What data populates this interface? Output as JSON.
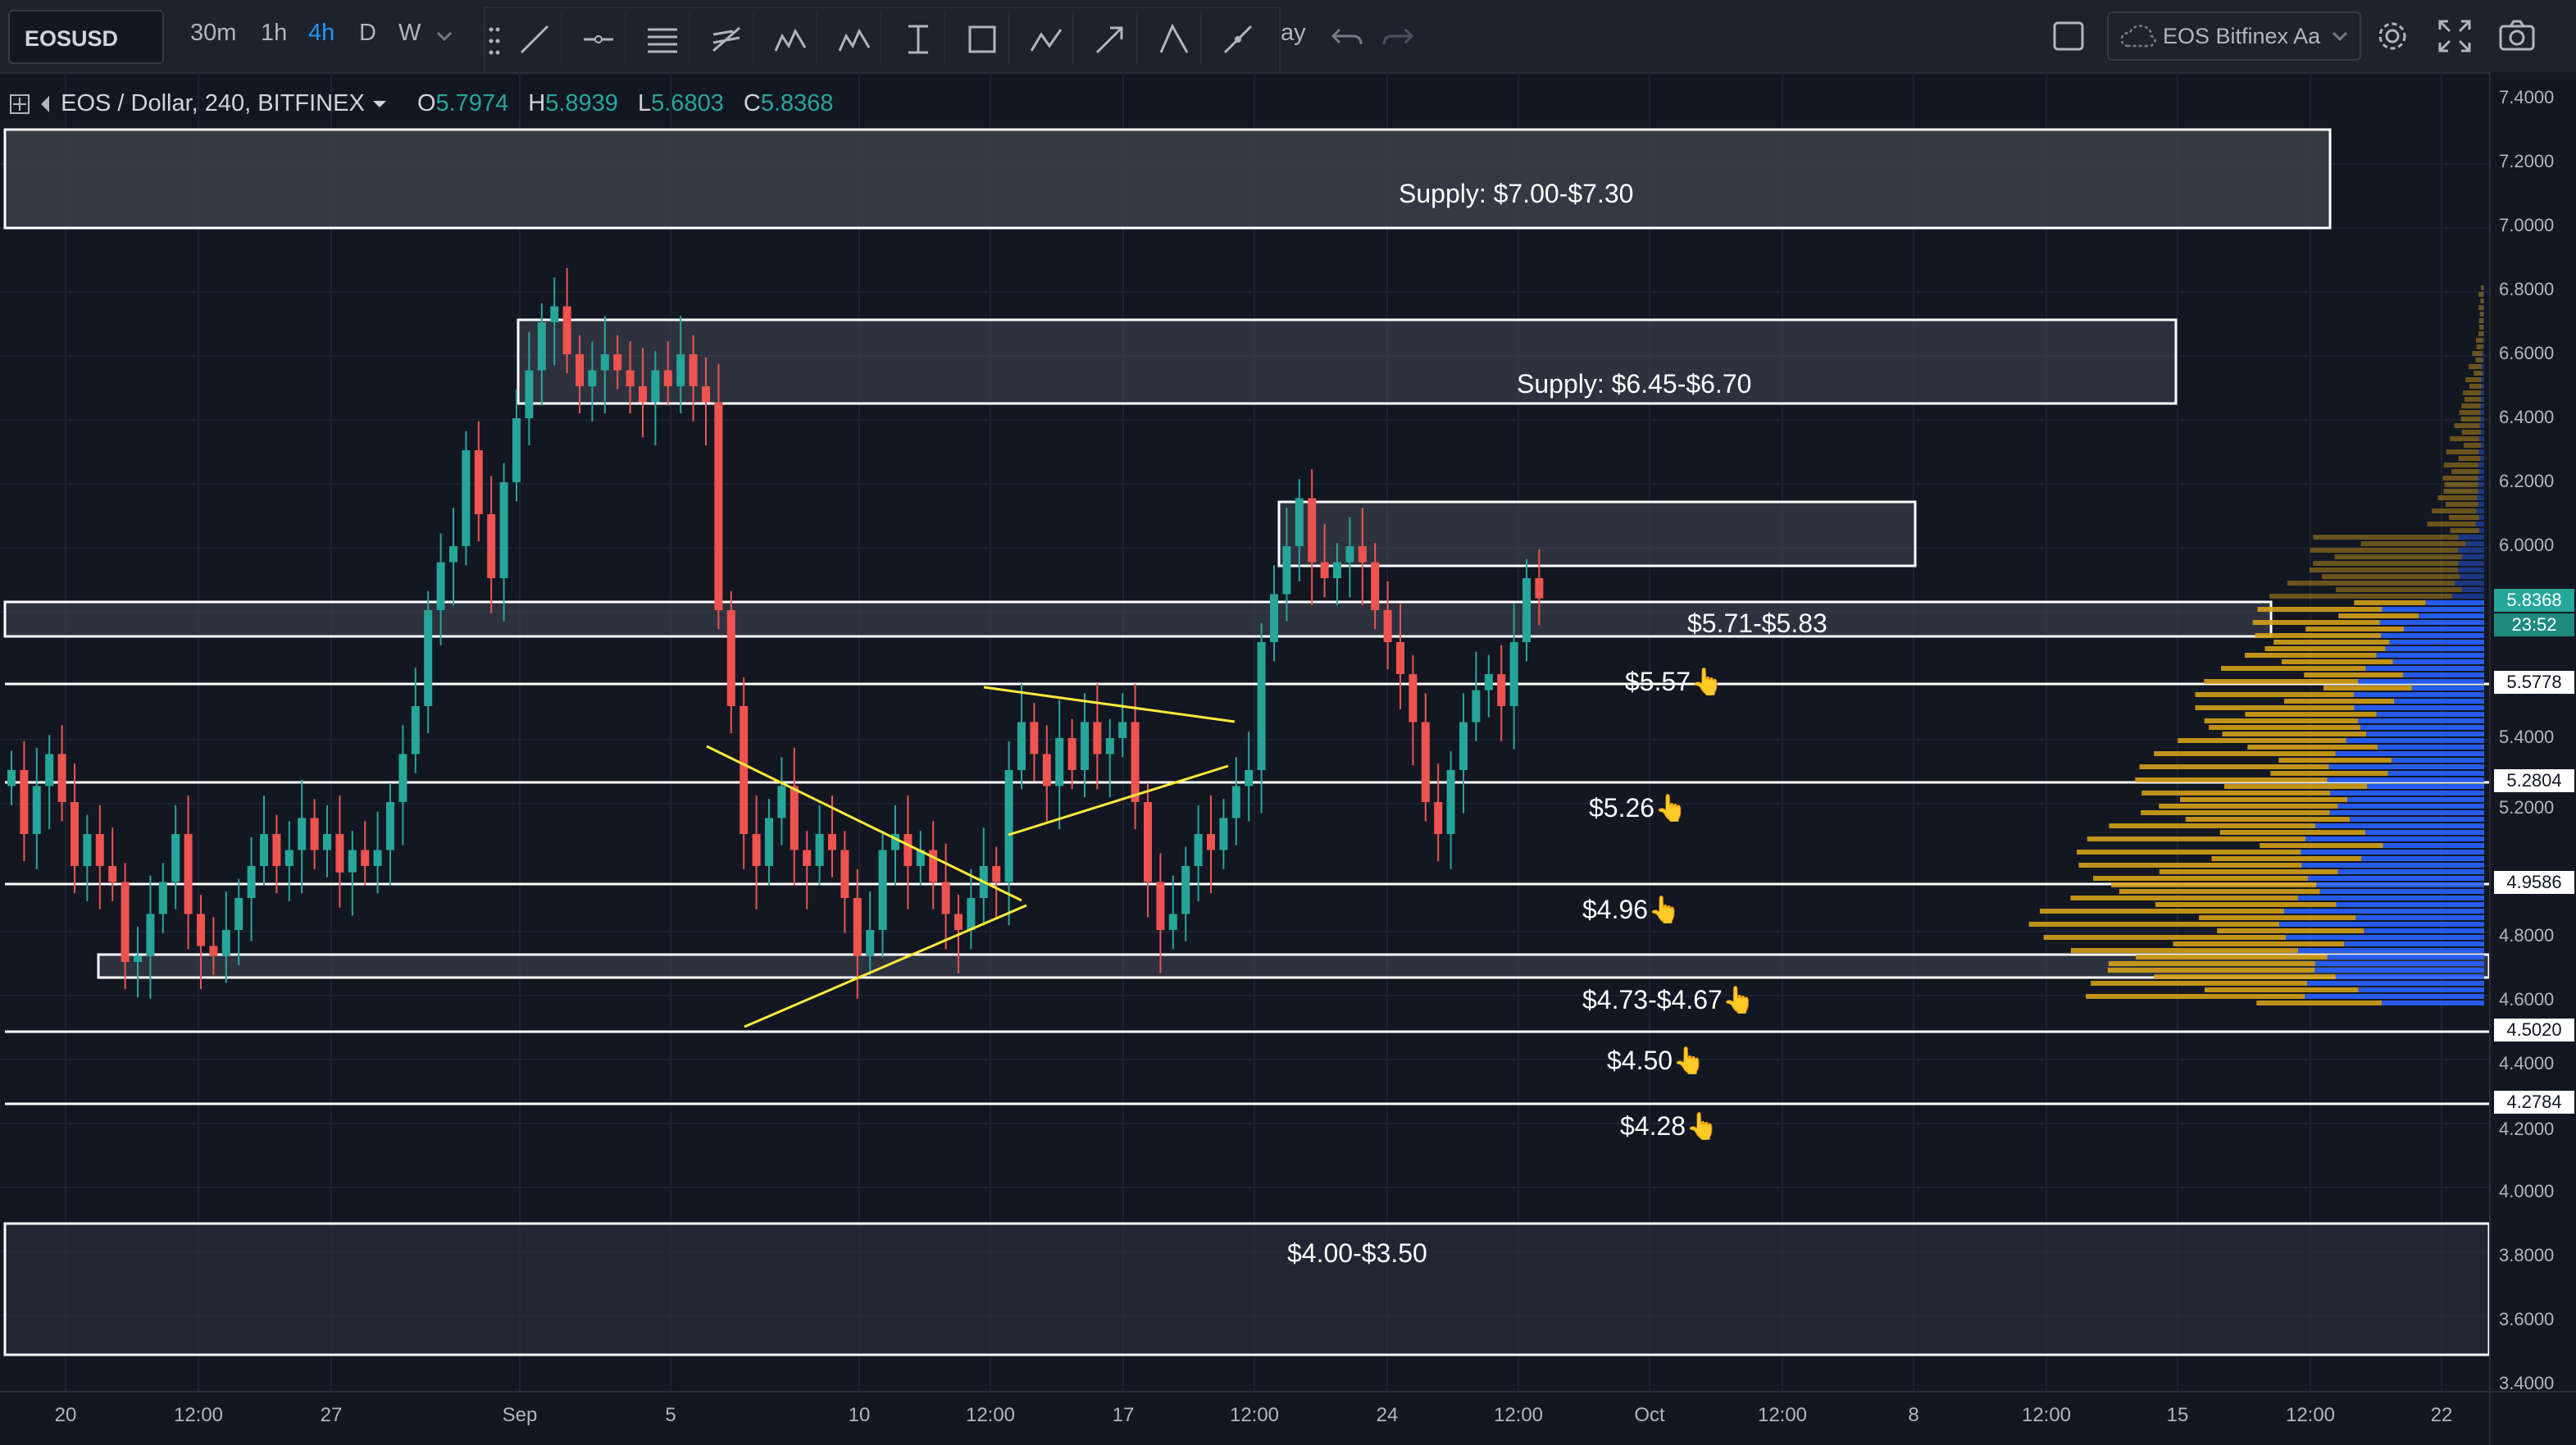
{
  "toolbar": {
    "symbol": "EOSUSD",
    "intervals": [
      "30m",
      "1h",
      "4h",
      "D",
      "W"
    ],
    "active_interval": "4h",
    "hidden_label_fragment": "ay",
    "layout_name": "EOS Bitfinex Aa",
    "icons": [
      "grip-icon",
      "trend-line-icon",
      "horizontal-ray-icon",
      "parallel-channel-icon",
      "fib-retracement-icon",
      "pattern-icon",
      "elliott-wave-icon",
      "date-range-icon",
      "rectangle-icon",
      "abcd-pattern-icon",
      "arrow-icon",
      "angle-icon",
      "path-icon",
      "undo-icon",
      "redo-icon",
      "fullscreen-toggle-icon",
      "cloud-icon",
      "settings-gear-icon",
      "expand-icon",
      "camera-icon"
    ]
  },
  "legend": {
    "title": "EOS / Dollar, 240, BITFINEX",
    "open_label": "O",
    "open": "5.7974",
    "high_label": "H",
    "high": "5.8939",
    "low_label": "L",
    "low": "5.6803",
    "close_label": "C",
    "close": "5.8368"
  },
  "zones": {
    "supply_top": "Supply: $7.00-$7.30",
    "supply_mid": "Supply: $6.45-$6.70",
    "range_571": "$5.71-$5.83",
    "level_557": "$5.57👆",
    "level_526": "$5.26👆",
    "level_496": "$4.96👆",
    "range_473": "$4.73-$4.67👆",
    "level_450": "$4.50👆",
    "level_428": "$4.28👆",
    "range_400": "$4.00-$3.50"
  },
  "colors": {
    "background": "#131722",
    "up_candle": "#26a69a",
    "down_candle": "#ef5350",
    "zone_fill": "#3b3f4a",
    "zone_border": "#ffffff",
    "trendline": "#ffeb3b",
    "volume_profile_up": "#2962ff",
    "volume_profile_down": "#d4a017"
  },
  "price_axis": {
    "ticks": [
      "7.4000",
      "7.2000",
      "7.0000",
      "6.8000",
      "6.6000",
      "6.4000",
      "6.2000",
      "6.0000",
      "5.4000",
      "5.2000",
      "4.8000",
      "4.6000",
      "4.4000",
      "4.2000",
      "4.0000",
      "3.8000",
      "3.6000",
      "3.4000"
    ],
    "current_price": "5.8368",
    "countdown": "23:52",
    "level_labels": [
      "5.5778",
      "5.2804",
      "4.9586",
      "4.5020",
      "4.2784"
    ]
  },
  "time_axis": {
    "ticks": [
      "20",
      "12:00",
      "27",
      "Sep",
      "5",
      "10",
      "12:00",
      "17",
      "12:00",
      "24",
      "12:00",
      "Oct",
      "12:00",
      "8",
      "12:00",
      "15",
      "12:00",
      "22"
    ]
  },
  "chart_data": {
    "type": "candlestick",
    "symbol": "EOS / Dollar",
    "exchange": "BITFINEX",
    "timeframe": "240",
    "y_range": [
      3.4,
      7.45
    ],
    "ohlc_last": {
      "open": 5.7974,
      "high": 5.8939,
      "low": 5.6803,
      "close": 5.8368
    },
    "closes": [
      5.3,
      5.1,
      5.25,
      5.35,
      5.2,
      5.0,
      5.1,
      5.0,
      4.95,
      4.7,
      4.72,
      4.85,
      4.95,
      5.1,
      4.85,
      4.75,
      4.72,
      4.8,
      4.9,
      5.0,
      5.1,
      5.0,
      5.05,
      5.15,
      5.05,
      5.1,
      4.98,
      5.05,
      5.0,
      5.05,
      5.2,
      5.35,
      5.5,
      5.8,
      5.95,
      6.0,
      6.3,
      6.1,
      5.9,
      6.2,
      6.4,
      6.55,
      6.7,
      6.75,
      6.6,
      6.5,
      6.55,
      6.6,
      6.55,
      6.5,
      6.45,
      6.55,
      6.5,
      6.6,
      6.5,
      6.45,
      5.8,
      5.5,
      5.1,
      5.0,
      5.15,
      5.25,
      5.05,
      5.0,
      5.1,
      5.05,
      4.9,
      4.72,
      4.8,
      5.05,
      5.1,
      5.0,
      5.05,
      4.95,
      4.85,
      4.8,
      4.9,
      5.0,
      4.95,
      5.3,
      5.45,
      5.35,
      5.25,
      5.4,
      5.3,
      5.45,
      5.35,
      5.4,
      5.45,
      5.2,
      4.95,
      4.8,
      4.85,
      5.0,
      5.1,
      5.05,
      5.15,
      5.25,
      5.3,
      5.7,
      5.85,
      6.0,
      6.15,
      5.95,
      5.9,
      5.95,
      6.0,
      5.95,
      5.8,
      5.7,
      5.6,
      5.45,
      5.2,
      5.1,
      5.3,
      5.45,
      5.55,
      5.6,
      5.5,
      5.7,
      5.9,
      5.8368
    ]
  }
}
